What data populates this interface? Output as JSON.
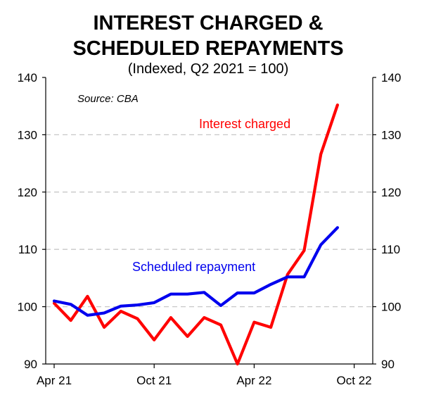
{
  "chart_data": {
    "type": "line",
    "title_line1": "INTEREST CHARGED &",
    "title_line2": "SCHEDULED REPAYMENTS",
    "subtitle": "(Indexed, Q2 2021 = 100)",
    "source": "Source: CBA",
    "ylim": [
      90,
      140
    ],
    "yticks": [
      90,
      100,
      110,
      120,
      130,
      140
    ],
    "grid": true,
    "x_ticks": [
      {
        "label": "Apr 21",
        "month": 0
      },
      {
        "label": "Oct 21",
        "month": 6
      },
      {
        "label": "Apr 22",
        "month": 12
      },
      {
        "label": "Oct 22",
        "month": 18
      }
    ],
    "x_months": [
      0,
      1,
      2,
      3,
      4,
      5,
      6,
      7,
      8,
      9,
      10,
      11,
      12,
      13,
      14,
      15,
      16,
      17
    ],
    "series": [
      {
        "name": "Interest charged",
        "color": "#ff0000",
        "values": [
          100.6,
          97.6,
          101.8,
          96.4,
          99.2,
          97.9,
          94.2,
          98.1,
          94.8,
          98.1,
          96.8,
          90.0,
          97.3,
          96.4,
          105.6,
          109.8,
          126.6,
          135.2
        ]
      },
      {
        "name": "Scheduled repayment",
        "color": "#0000ee",
        "values": [
          101.0,
          100.4,
          98.5,
          98.9,
          100.1,
          100.3,
          100.7,
          102.2,
          102.2,
          102.5,
          100.2,
          102.4,
          102.4,
          103.9,
          105.2,
          105.2,
          110.8,
          113.8
        ]
      }
    ]
  }
}
